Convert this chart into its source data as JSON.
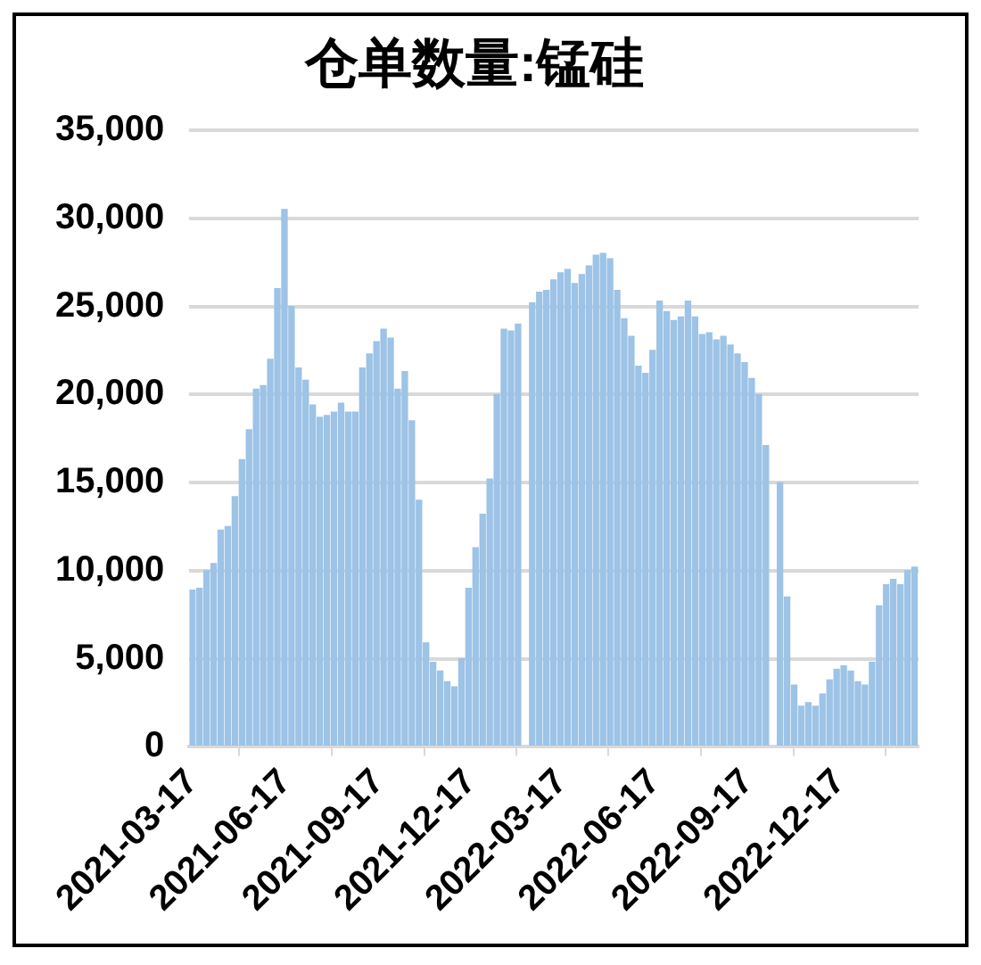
{
  "chart_data": {
    "type": "bar",
    "title": "仓单数量:锰硅",
    "x": [
      "2021-03-17",
      "2021-03-24",
      "2021-03-31",
      "2021-04-07",
      "2021-04-14",
      "2021-04-21",
      "2021-04-28",
      "2021-05-05",
      "2021-05-12",
      "2021-05-19",
      "2021-05-26",
      "2021-06-02",
      "2021-06-09",
      "2021-06-16",
      "2021-06-23",
      "2021-06-30",
      "2021-07-07",
      "2021-07-14",
      "2021-07-21",
      "2021-07-28",
      "2021-08-04",
      "2021-08-11",
      "2021-08-18",
      "2021-08-25",
      "2021-09-01",
      "2021-09-08",
      "2021-09-15",
      "2021-09-22",
      "2021-09-29",
      "2021-10-06",
      "2021-10-13",
      "2021-10-20",
      "2021-10-27",
      "2021-11-03",
      "2021-11-10",
      "2021-11-17",
      "2021-11-24",
      "2021-12-01",
      "2021-12-08",
      "2021-12-15",
      "2021-12-22",
      "2021-12-29",
      "2022-01-05",
      "2022-01-12",
      "2022-01-19",
      "2022-01-26",
      "2022-02-02",
      "2022-02-09",
      "2022-02-16",
      "2022-02-23",
      "2022-03-02",
      "2022-03-09",
      "2022-03-16",
      "2022-03-23",
      "2022-03-30",
      "2022-04-06",
      "2022-04-13",
      "2022-04-20",
      "2022-04-27",
      "2022-05-04",
      "2022-05-11",
      "2022-05-18",
      "2022-05-25",
      "2022-06-01",
      "2022-06-08",
      "2022-06-15",
      "2022-06-22",
      "2022-06-29",
      "2022-07-06",
      "2022-07-13",
      "2022-07-20",
      "2022-07-27",
      "2022-08-03",
      "2022-08-10",
      "2022-08-17",
      "2022-08-24",
      "2022-08-31",
      "2022-09-07",
      "2022-09-14",
      "2022-09-21",
      "2022-09-28",
      "2022-10-05",
      "2022-10-12",
      "2022-10-19",
      "2022-10-26",
      "2022-11-02",
      "2022-11-09",
      "2022-11-16",
      "2022-11-23",
      "2022-11-30",
      "2022-12-07",
      "2022-12-14",
      "2022-12-21",
      "2022-12-28",
      "2023-01-04",
      "2023-01-11",
      "2023-01-18",
      "2023-01-25",
      "2023-02-01",
      "2023-02-08",
      "2023-02-15",
      "2023-02-22",
      "2023-03-01"
    ],
    "series": [
      {
        "color": "#9dc3e6",
        "values": [
          8900,
          9000,
          10000,
          10400,
          12300,
          12500,
          14200,
          16300,
          18000,
          20300,
          20500,
          22000,
          26000,
          30500,
          25000,
          21500,
          20800,
          19400,
          18700,
          18800,
          19000,
          19500,
          19000,
          19000,
          21500,
          22300,
          23000,
          23700,
          23200,
          20300,
          21300,
          18500,
          14000,
          5900,
          4800,
          4300,
          3700,
          3400,
          5000,
          9000,
          11300,
          13200,
          15200,
          20000,
          23700,
          23600,
          24000,
          null,
          25200,
          25800,
          25900,
          26500,
          26900,
          27100,
          26300,
          26800,
          27300,
          27900,
          28000,
          27700,
          25900,
          24300,
          23300,
          21600,
          21200,
          22500,
          25300,
          24700,
          24200,
          24400,
          25300,
          24400,
          23400,
          23500,
          23100,
          23300,
          22800,
          22300,
          21800,
          20900,
          20000,
          17100,
          null,
          15000,
          8500,
          3500,
          2300,
          2500,
          2300,
          3000,
          3800,
          4400,
          4600,
          4300,
          3700,
          3500,
          4800,
          8000,
          9200,
          9500,
          9200,
          10000,
          10200
        ]
      }
    ],
    "xlim": [
      "2021-03-14",
      "2023-03-05"
    ],
    "xticks": [
      "2021-03-17",
      "2021-06-17",
      "2021-09-17",
      "2021-12-17",
      "2022-03-17",
      "2022-06-17",
      "2022-09-17",
      "2022-12-17"
    ],
    "ylim": [
      0,
      35000
    ],
    "yticks": [
      {
        "value": 0,
        "label": "0"
      },
      {
        "value": 5000,
        "label": "5,000"
      },
      {
        "value": 10000,
        "label": "10,000"
      },
      {
        "value": 15000,
        "label": "15,000"
      },
      {
        "value": 20000,
        "label": "20,000"
      },
      {
        "value": 25000,
        "label": "25,000"
      },
      {
        "value": 30000,
        "label": "30,000"
      },
      {
        "value": 35000,
        "label": "35,000"
      }
    ],
    "grid": "y",
    "legend": false
  }
}
